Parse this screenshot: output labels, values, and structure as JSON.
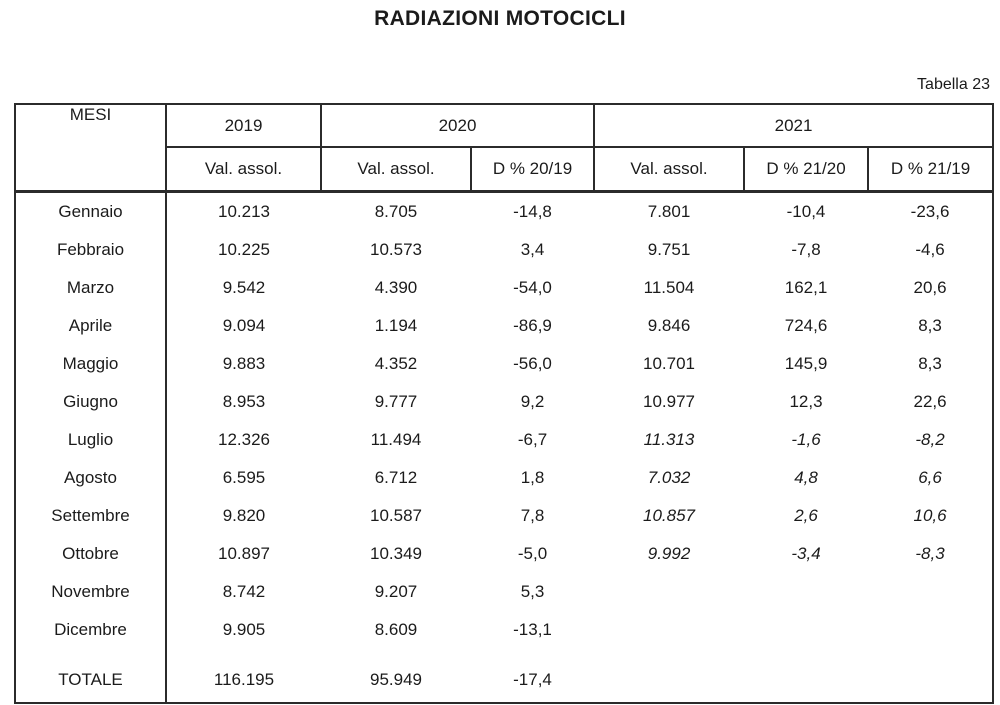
{
  "title": "RADIAZIONI MOTOCICLI",
  "table_label": "Tabella 23",
  "colors": {
    "text": "#1b1b1b",
    "border": "#2b2b2b",
    "background": "#ffffff"
  },
  "table": {
    "corner_label": "MESI",
    "year_groups": [
      {
        "label": "2019",
        "subcols": [
          "Val. assol."
        ]
      },
      {
        "label": "2020",
        "subcols": [
          "Val. assol.",
          "D % 20/19"
        ]
      },
      {
        "label": "2021",
        "subcols": [
          "Val. assol.",
          "D % 21/20",
          "D % 21/19"
        ]
      }
    ],
    "rows": [
      {
        "month": "Gennaio",
        "values": [
          "10.213",
          "8.705",
          "-14,8",
          "7.801",
          "-10,4",
          "-23,6"
        ],
        "italic_2021": false,
        "is_total": false
      },
      {
        "month": "Febbraio",
        "values": [
          "10.225",
          "10.573",
          "3,4",
          "9.751",
          "-7,8",
          "-4,6"
        ],
        "italic_2021": false,
        "is_total": false
      },
      {
        "month": "Marzo",
        "values": [
          "9.542",
          "4.390",
          "-54,0",
          "11.504",
          "162,1",
          "20,6"
        ],
        "italic_2021": false,
        "is_total": false
      },
      {
        "month": "Aprile",
        "values": [
          "9.094",
          "1.194",
          "-86,9",
          "9.846",
          "724,6",
          "8,3"
        ],
        "italic_2021": false,
        "is_total": false
      },
      {
        "month": "Maggio",
        "values": [
          "9.883",
          "4.352",
          "-56,0",
          "10.701",
          "145,9",
          "8,3"
        ],
        "italic_2021": false,
        "is_total": false
      },
      {
        "month": "Giugno",
        "values": [
          "8.953",
          "9.777",
          "9,2",
          "10.977",
          "12,3",
          "22,6"
        ],
        "italic_2021": false,
        "is_total": false
      },
      {
        "month": "Luglio",
        "values": [
          "12.326",
          "11.494",
          "-6,7",
          "11.313",
          "-1,6",
          "-8,2"
        ],
        "italic_2021": true,
        "is_total": false
      },
      {
        "month": "Agosto",
        "values": [
          "6.595",
          "6.712",
          "1,8",
          "7.032",
          "4,8",
          "6,6"
        ],
        "italic_2021": true,
        "is_total": false
      },
      {
        "month": "Settembre",
        "values": [
          "9.820",
          "10.587",
          "7,8",
          "10.857",
          "2,6",
          "10,6"
        ],
        "italic_2021": true,
        "is_total": false
      },
      {
        "month": "Ottobre",
        "values": [
          "10.897",
          "10.349",
          "-5,0",
          "9.992",
          "-3,4",
          "-8,3"
        ],
        "italic_2021": true,
        "is_total": false
      },
      {
        "month": "Novembre",
        "values": [
          "8.742",
          "9.207",
          "5,3",
          "",
          "",
          ""
        ],
        "italic_2021": false,
        "is_total": false
      },
      {
        "month": "Dicembre",
        "values": [
          "9.905",
          "8.609",
          "-13,1",
          "",
          "",
          ""
        ],
        "italic_2021": false,
        "is_total": false
      },
      {
        "month": "TOTALE",
        "values": [
          "116.195",
          "95.949",
          "-17,4",
          "",
          "",
          ""
        ],
        "italic_2021": false,
        "is_total": true
      }
    ]
  }
}
